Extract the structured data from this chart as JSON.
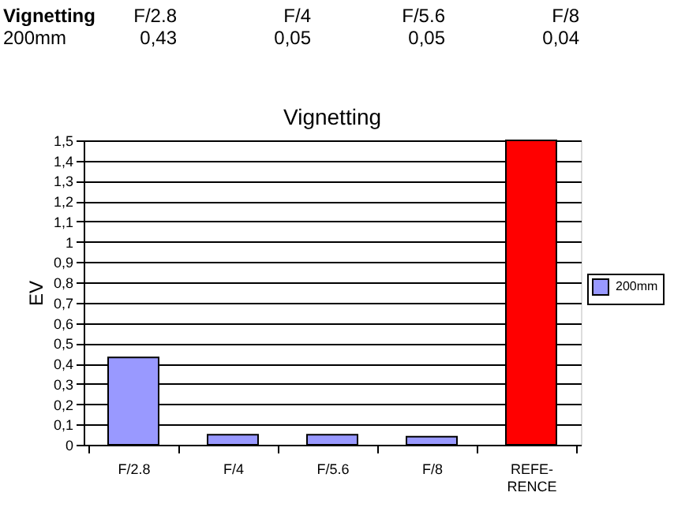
{
  "chart_data": {
    "type": "bar",
    "title": "Vignetting",
    "ylabel": "EV",
    "annotations": [
      "Vignetting"
    ],
    "categories": [
      "F/2.8",
      "F/4",
      "F/5.6",
      "F/8",
      "REFE-\nRENCE"
    ],
    "series": [
      {
        "name": "200mm",
        "color": "#9999ff",
        "values": [
          0.43,
          0.05,
          0.05,
          0.04,
          null
        ]
      },
      {
        "color": "#ff0000",
        "values": [
          null,
          null,
          null,
          null,
          1.5
        ]
      }
    ],
    "value_labels": [
      "0,43",
      "0,05",
      "0,05",
      "0,04",
      null
    ],
    "ylim": [
      0,
      1.5
    ],
    "yticks": [
      0,
      {
        "value": 0.1,
        "label": "0,1"
      },
      {
        "value": 0.2,
        "label": "0,2"
      },
      {
        "value": 0.3,
        "label": "0,3"
      },
      {
        "value": 0.4,
        "label": "0,4"
      },
      {
        "value": 0.5,
        "label": "0,5"
      },
      {
        "value": 0.6,
        "label": "0,6"
      },
      {
        "value": 0.7,
        "label": "0,7"
      },
      {
        "value": 0.8,
        "label": "0,8"
      },
      {
        "value": 0.9,
        "label": "0,9"
      },
      1,
      {
        "value": 1.1,
        "label": "1,1"
      },
      {
        "value": 1.2,
        "label": "1,2"
      },
      {
        "value": 1.3,
        "label": "1,3"
      },
      {
        "value": 1.4,
        "label": "1,4"
      },
      {
        "value": 1.5,
        "label": "1,5"
      }
    ],
    "grid": "y",
    "legend": "right"
  }
}
